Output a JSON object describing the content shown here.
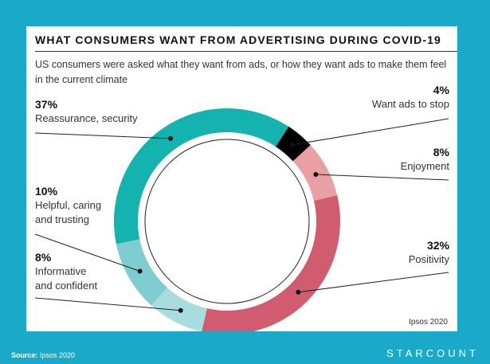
{
  "chart_data": {
    "type": "pie",
    "subtype": "donut",
    "title": "WHAT CONSUMERS WANT FROM ADVERTISING DURING COVID-19",
    "subtitle": "US consumers were asked what they want from ads, or how they want ads to make them feel in the current climate",
    "categories": [
      "Want ads to stop",
      "Enjoyment",
      "Positivity",
      "Informative and confident",
      "Helpful, caring and trusting",
      "Reassurance, security"
    ],
    "values": [
      4,
      8,
      32,
      8,
      10,
      37
    ],
    "labels": {
      "stop": {
        "pct": "4%",
        "text": "Want ads to stop"
      },
      "enjoy": {
        "pct": "8%",
        "text": "Enjoyment"
      },
      "pos": {
        "pct": "32%",
        "text": "Positivity"
      },
      "inform": {
        "pct": "8%",
        "line1": "Informative",
        "line2": "and confident"
      },
      "helpful": {
        "pct": "10%",
        "line1": "Helpful, caring",
        "line2": "and trusting"
      },
      "reassure": {
        "pct": "37%",
        "text": "Reassurance, security"
      }
    },
    "colors": [
      "#000000",
      "#e8a0a4",
      "#d15c6f",
      "#a8dde0",
      "#7ecdd0",
      "#14b3b0"
    ],
    "credit": "Ipsos 2020"
  },
  "footer": {
    "source_label": "Source:",
    "source_text": "Ipsos 2020",
    "brand": "STARCOUNT"
  }
}
